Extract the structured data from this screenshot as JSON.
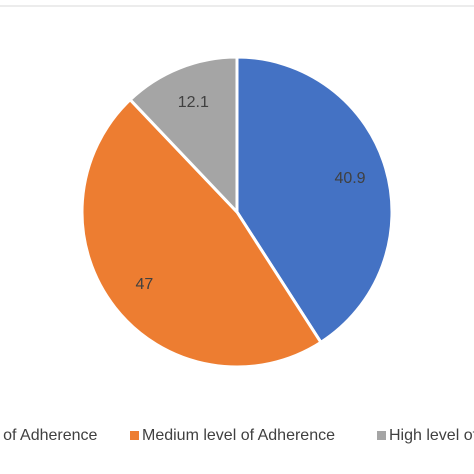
{
  "chart_data": {
    "type": "pie",
    "categories": [
      "Low level of Adherence",
      "Medium level of Adherence",
      "High level of Adherence"
    ],
    "values": [
      40.9,
      47,
      12.1
    ],
    "colors": [
      "#4472c4",
      "#ed7d31",
      "#a5a5a5"
    ],
    "legend": "bottom"
  }
}
